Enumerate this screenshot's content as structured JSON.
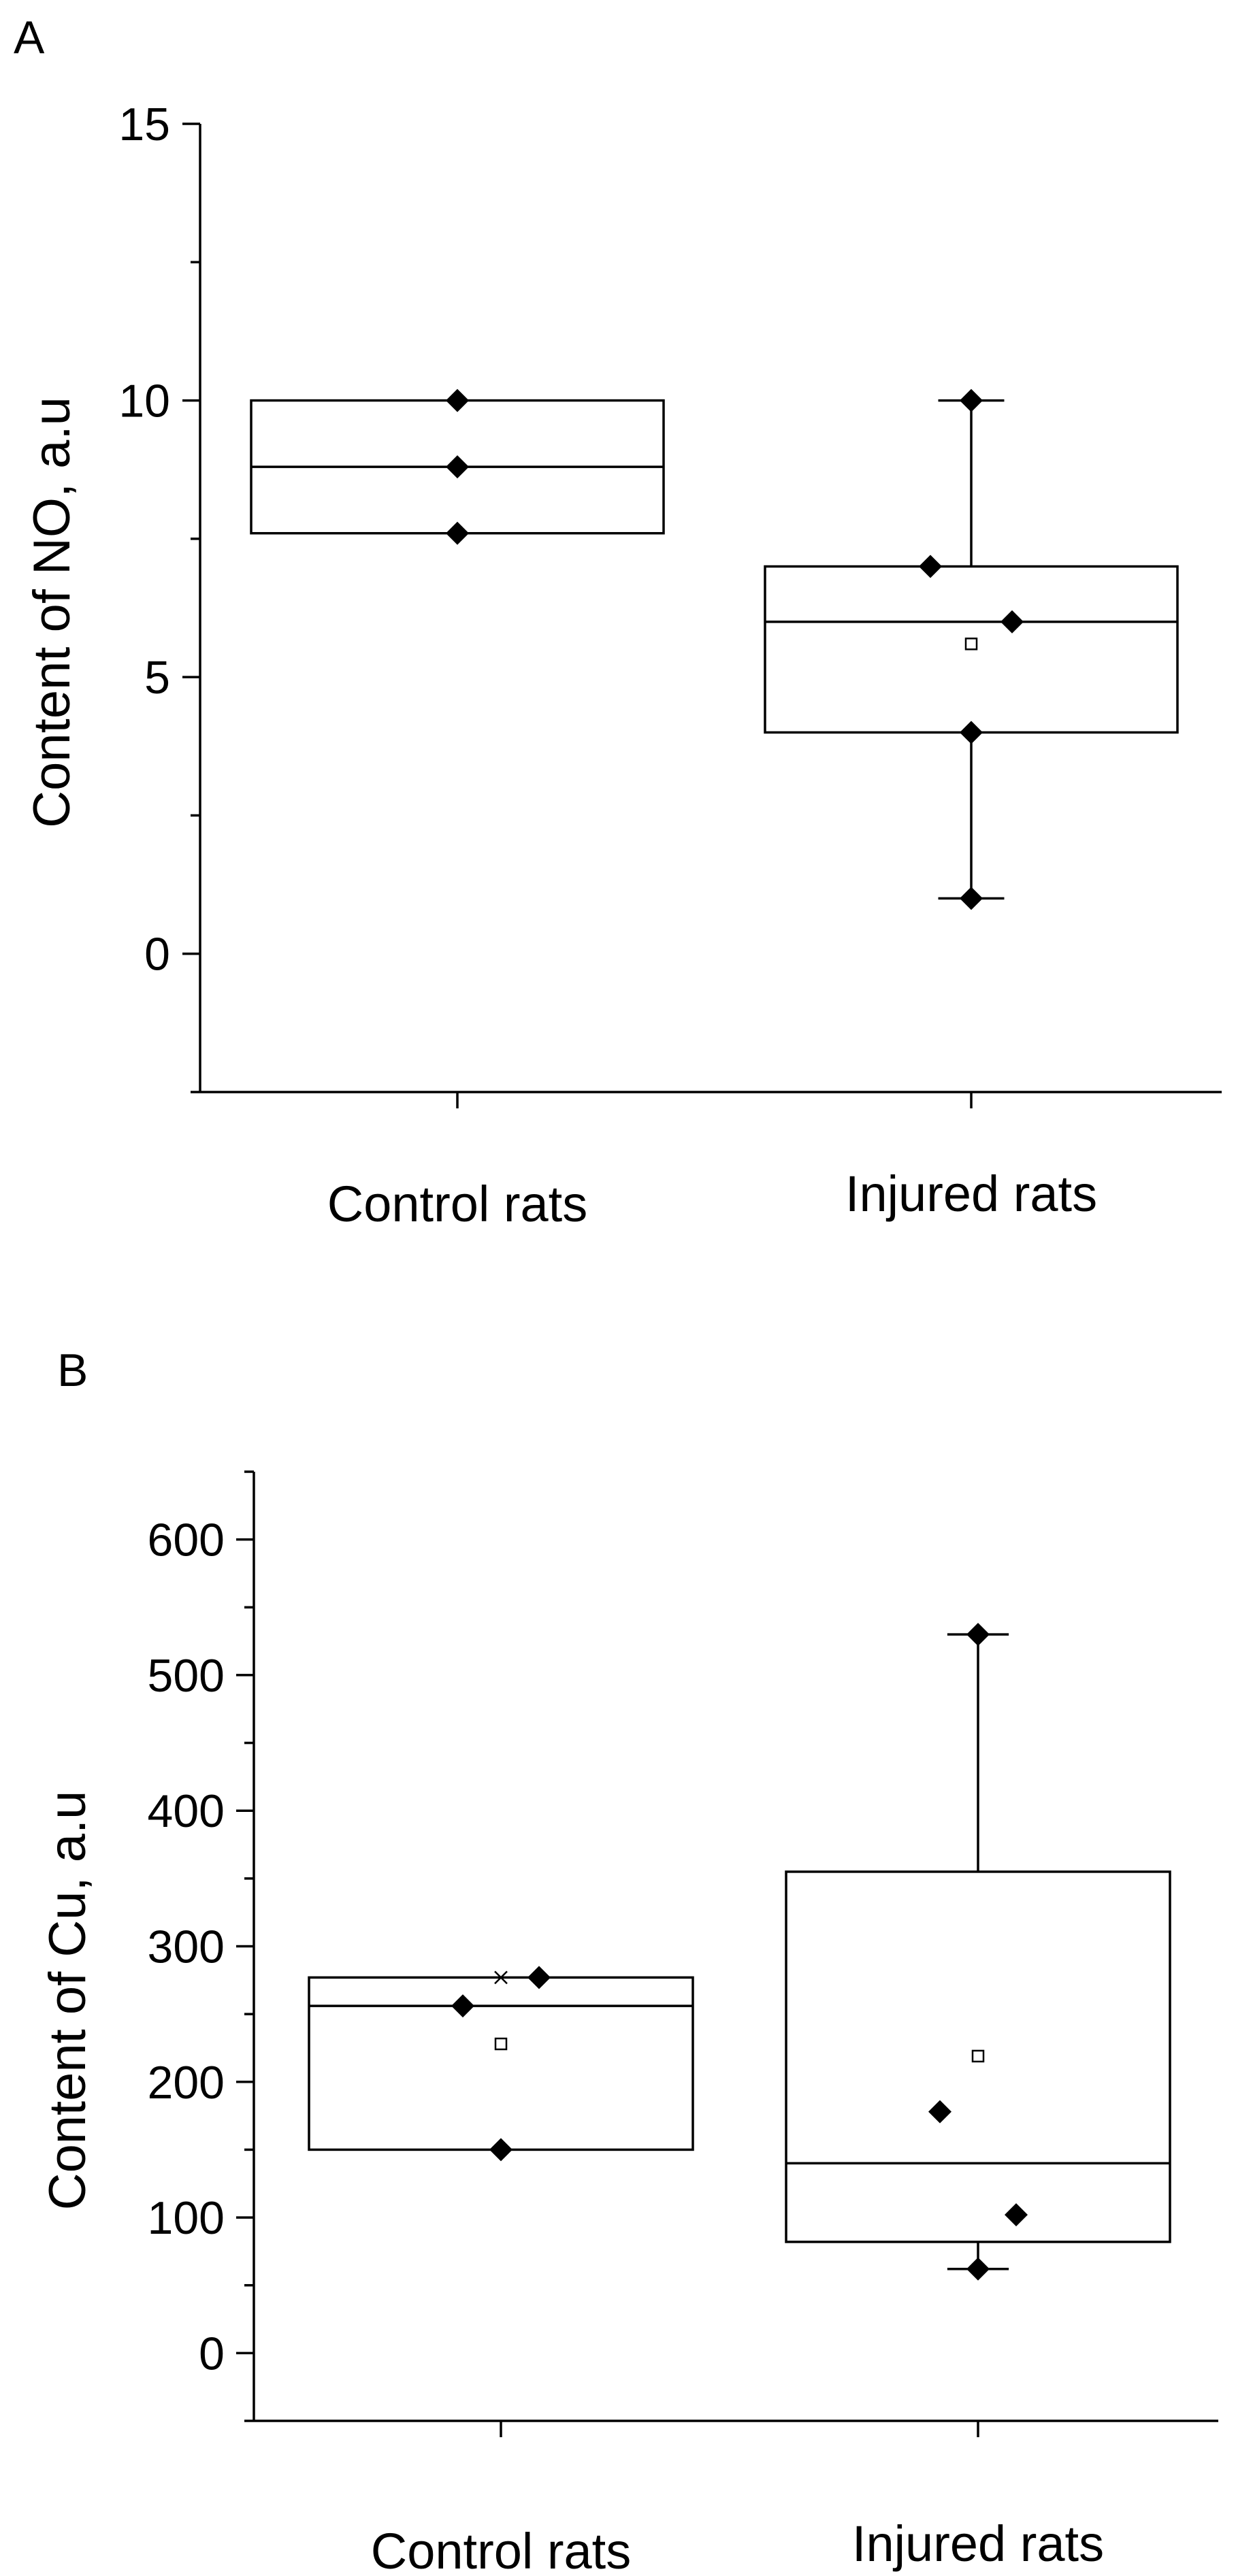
{
  "chart_data": [
    {
      "type": "box",
      "panel": "A",
      "title": "",
      "xlabel": "",
      "ylabel": "Content of NO, a.u",
      "ylim": [
        -2.5,
        15
      ],
      "yticks": [
        0,
        5,
        10,
        15
      ],
      "ytick_labels": [
        "0",
        "5",
        "10",
        "15"
      ],
      "minor_yticks": [
        -2.5,
        2.5,
        7.5,
        12.5
      ],
      "categories": [
        "Control rats",
        "Injured rats"
      ],
      "boxes": [
        {
          "name": "Control rats",
          "q1": 7.6,
          "median": 8.8,
          "q3": 10.0,
          "whisker_low": 7.6,
          "whisker_high": 10.0,
          "mean": null,
          "max_marker": null,
          "points": [
            {
              "y": 10.0,
              "jitter": 0
            },
            {
              "y": 8.8,
              "jitter": 0
            },
            {
              "y": 7.6,
              "jitter": 0
            }
          ]
        },
        {
          "name": "Injured rats",
          "q1": 4.0,
          "median": 6.0,
          "q3": 7.0,
          "whisker_low": 1.0,
          "whisker_high": 10.0,
          "mean": 5.6,
          "max_marker": null,
          "points": [
            {
              "y": 10.0,
              "jitter": 0
            },
            {
              "y": 7.0,
              "jitter": -0.2
            },
            {
              "y": 6.0,
              "jitter": 0.2
            },
            {
              "y": 4.0,
              "jitter": 0
            },
            {
              "y": 1.0,
              "jitter": 0
            }
          ]
        }
      ]
    },
    {
      "type": "box",
      "panel": "B",
      "title": "",
      "xlabel": "",
      "ylabel": "Content of Cu, a.u",
      "ylim": [
        -50,
        650
      ],
      "yticks": [
        0,
        100,
        200,
        300,
        400,
        500,
        600
      ],
      "ytick_labels": [
        "0",
        "100",
        "200",
        "300",
        "400",
        "500",
        "600"
      ],
      "minor_yticks": [
        -50,
        50,
        150,
        250,
        350,
        450,
        550,
        650
      ],
      "categories": [
        "Control rats",
        "Injured rats"
      ],
      "boxes": [
        {
          "name": "Control rats",
          "q1": 150,
          "median": 256,
          "q3": 277,
          "whisker_low": null,
          "whisker_high": null,
          "mean": 228,
          "max_marker": 277,
          "points": [
            {
              "y": 256,
              "jitter": -0.2
            },
            {
              "y": 277,
              "jitter": 0.2
            },
            {
              "y": 150,
              "jitter": 0
            }
          ]
        },
        {
          "name": "Injured rats",
          "q1": 82,
          "median": 140,
          "q3": 355,
          "whisker_low": 62,
          "whisker_high": 530,
          "mean": 219,
          "max_marker": null,
          "points": [
            {
              "y": 530,
              "jitter": 0
            },
            {
              "y": 178,
              "jitter": -0.2
            },
            {
              "y": 102,
              "jitter": 0.2
            },
            {
              "y": 62,
              "jitter": 0
            }
          ]
        }
      ]
    }
  ]
}
